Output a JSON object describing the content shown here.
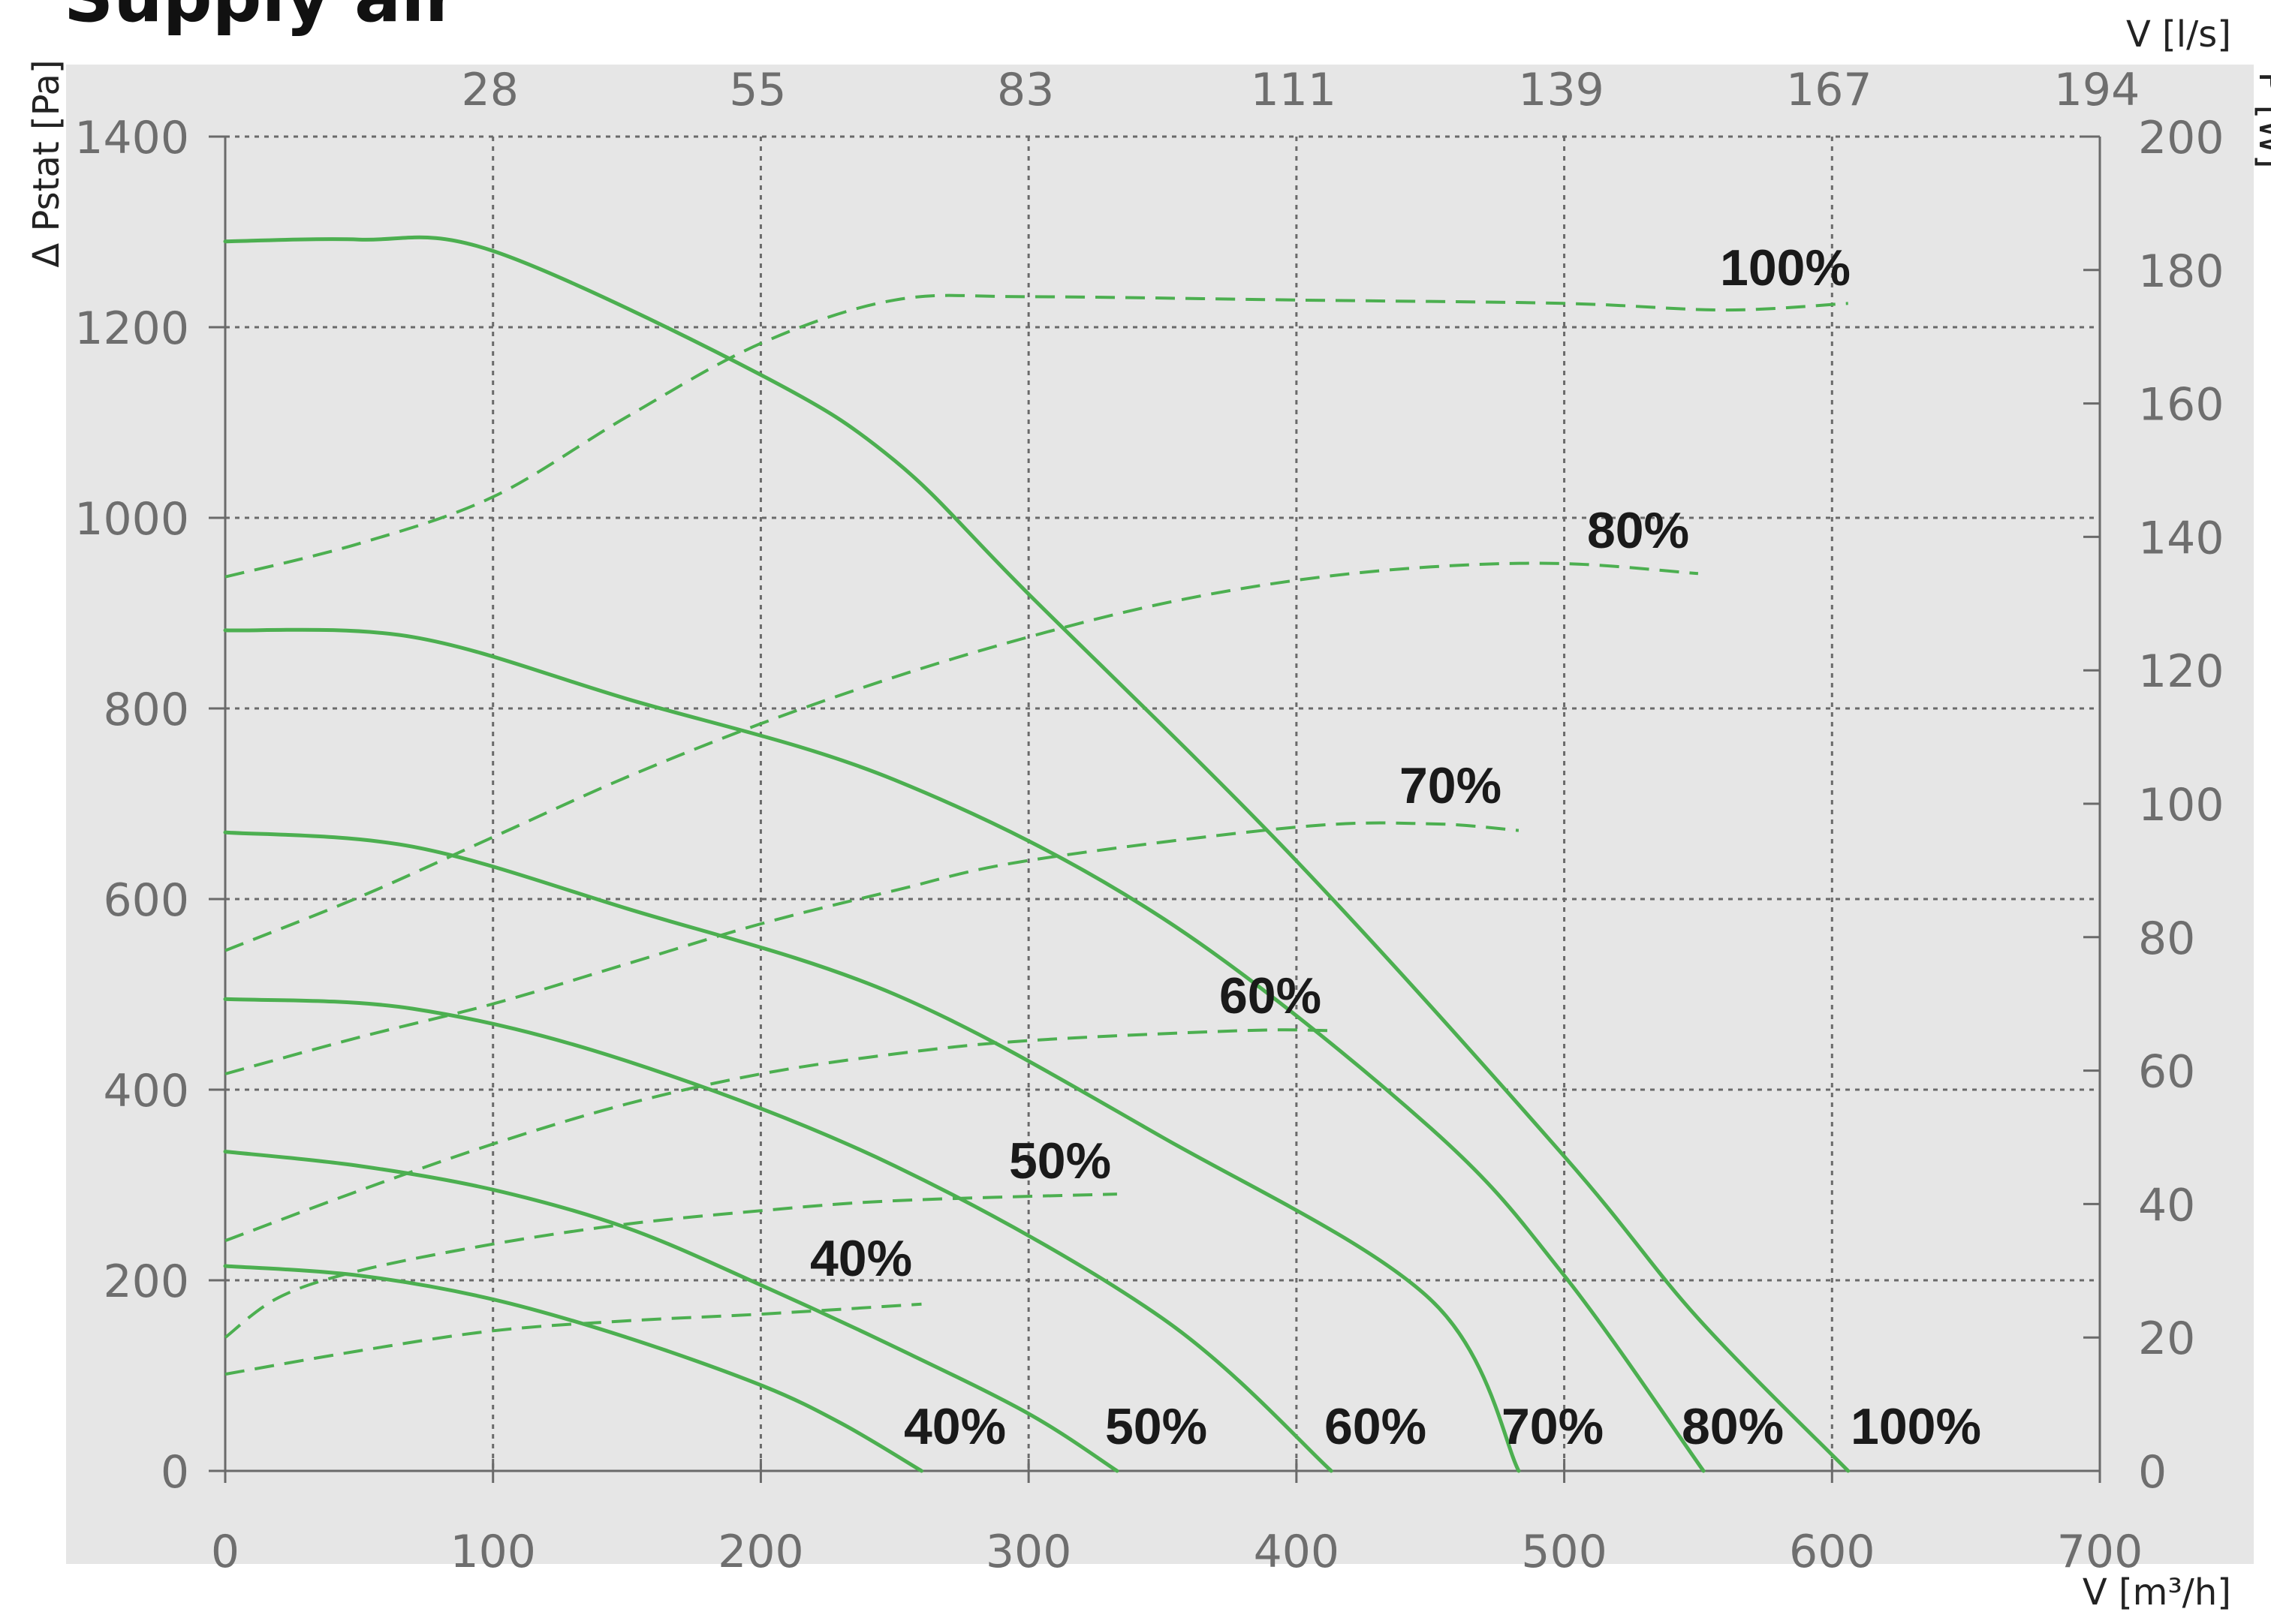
{
  "chart_data": {
    "type": "line",
    "title": "Supply air",
    "xlabel_bottom": "V [m³/h]",
    "xlabel_top": "V [l/s]",
    "ylabel_left": "Δ Pstat [Pa]",
    "ylabel_right": "P [W]",
    "xlim": [
      0,
      700
    ],
    "ylim_left": [
      0,
      1400
    ],
    "ylim_right": [
      0,
      200
    ],
    "x_ticks": [
      "0",
      "100",
      "200",
      "300",
      "400",
      "500",
      "600",
      "700"
    ],
    "top_ticks": [
      "28",
      "55",
      "83",
      "111",
      "139",
      "167",
      "194"
    ],
    "y_ticks_left": [
      "0",
      "200",
      "400",
      "600",
      "800",
      "1000",
      "1200",
      "1400"
    ],
    "y_ticks_right": [
      "0",
      "20",
      "40",
      "60",
      "80",
      "100",
      "120",
      "140",
      "160",
      "180",
      "200"
    ],
    "grid": true,
    "series_color": "#4caf50",
    "pressure_series": [
      {
        "name": "40%",
        "points": [
          [
            0,
            215
          ],
          [
            50,
            205
          ],
          [
            100,
            180
          ],
          [
            150,
            140
          ],
          [
            200,
            90
          ],
          [
            230,
            50
          ],
          [
            260,
            0
          ]
        ]
      },
      {
        "name": "50%",
        "points": [
          [
            0,
            335
          ],
          [
            50,
            320
          ],
          [
            100,
            295
          ],
          [
            150,
            255
          ],
          [
            200,
            195
          ],
          [
            250,
            130
          ],
          [
            300,
            60
          ],
          [
            333,
            0
          ]
        ]
      },
      {
        "name": "60%",
        "points": [
          [
            0,
            495
          ],
          [
            70,
            485
          ],
          [
            150,
            430
          ],
          [
            250,
            320
          ],
          [
            350,
            160
          ],
          [
            413,
            0
          ]
        ]
      },
      {
        "name": "70%",
        "points": [
          [
            0,
            670
          ],
          [
            70,
            655
          ],
          [
            150,
            590
          ],
          [
            250,
            500
          ],
          [
            350,
            350
          ],
          [
            450,
            180
          ],
          [
            483,
            0
          ]
        ]
      },
      {
        "name": "80%",
        "points": [
          [
            0,
            882
          ],
          [
            70,
            875
          ],
          [
            150,
            810
          ],
          [
            250,
            725
          ],
          [
            350,
            580
          ],
          [
            450,
            360
          ],
          [
            500,
            205
          ],
          [
            552,
            0
          ]
        ]
      },
      {
        "name": "100%",
        "points": [
          [
            0,
            1290
          ],
          [
            50,
            1292
          ],
          [
            100,
            1280
          ],
          [
            200,
            1150
          ],
          [
            250,
            1060
          ],
          [
            300,
            920
          ],
          [
            400,
            640
          ],
          [
            500,
            330
          ],
          [
            550,
            160
          ],
          [
            606,
            0
          ]
        ]
      }
    ],
    "power_series": [
      {
        "name": "40%",
        "points": [
          [
            0,
            14.5
          ],
          [
            50,
            18
          ],
          [
            100,
            21
          ],
          [
            150,
            22.5
          ],
          [
            200,
            23.5
          ],
          [
            260,
            25
          ]
        ]
      },
      {
        "name": "50%",
        "points": [
          [
            0,
            20
          ],
          [
            20,
            26
          ],
          [
            50,
            30
          ],
          [
            100,
            34
          ],
          [
            150,
            37
          ],
          [
            200,
            39
          ],
          [
            250,
            40.5
          ],
          [
            333,
            41.5
          ]
        ]
      },
      {
        "name": "60%",
        "points": [
          [
            0,
            34.5
          ],
          [
            50,
            42
          ],
          [
            100,
            49
          ],
          [
            150,
            55
          ],
          [
            200,
            59.5
          ],
          [
            250,
            62.5
          ],
          [
            300,
            64.5
          ],
          [
            380,
            66
          ],
          [
            413,
            66
          ]
        ]
      },
      {
        "name": "70%",
        "points": [
          [
            0,
            59.5
          ],
          [
            50,
            65
          ],
          [
            100,
            70
          ],
          [
            150,
            76
          ],
          [
            200,
            82
          ],
          [
            250,
            87
          ],
          [
            300,
            91.5
          ],
          [
            400,
            96.5
          ],
          [
            450,
            97
          ],
          [
            483,
            96
          ]
        ]
      },
      {
        "name": "80%",
        "points": [
          [
            0,
            78
          ],
          [
            50,
            86
          ],
          [
            100,
            95
          ],
          [
            150,
            104
          ],
          [
            200,
            112
          ],
          [
            250,
            119
          ],
          [
            300,
            125
          ],
          [
            350,
            130
          ],
          [
            400,
            133.5
          ],
          [
            450,
            135.5
          ],
          [
            500,
            136
          ],
          [
            550,
            134.5
          ]
        ]
      },
      {
        "name": "100%",
        "points": [
          [
            0,
            134
          ],
          [
            50,
            139
          ],
          [
            100,
            146
          ],
          [
            150,
            158
          ],
          [
            200,
            169
          ],
          [
            250,
            175.5
          ],
          [
            300,
            176
          ],
          [
            400,
            175.5
          ],
          [
            500,
            175
          ],
          [
            560,
            174
          ],
          [
            606,
            175
          ]
        ]
      }
    ],
    "power_labels": [
      "100%",
      "80%",
      "70%",
      "60%",
      "50%",
      "40%"
    ],
    "bottom_labels": [
      "40%",
      "50%",
      "60%",
      "70%",
      "80%",
      "100%"
    ]
  }
}
